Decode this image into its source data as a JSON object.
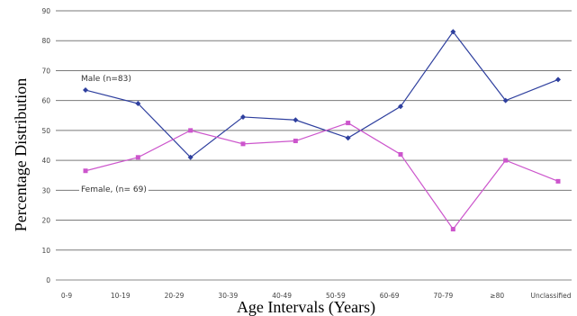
{
  "chart_data": {
    "type": "line",
    "title": "",
    "xlabel": "Age Intervals (Years)",
    "ylabel": "Percentage Distribution",
    "ylim": [
      0,
      90
    ],
    "yticks": [
      "0",
      "10",
      "20",
      "30",
      "40",
      "50",
      "60",
      "70",
      "80",
      "90"
    ],
    "categories": [
      "0-9",
      "10-19",
      "20-29",
      "30-39",
      "40-49",
      "50-59",
      "60-69",
      "70-79",
      "≥80",
      "Unclassified"
    ],
    "series": [
      {
        "name": "Male (n=83)",
        "color": "#2e3f9e",
        "marker": "diamond",
        "values": [
          63.5,
          59,
          41,
          54.5,
          53.5,
          47.5,
          58,
          83,
          60,
          67
        ]
      },
      {
        "name": "Female, (n= 69)",
        "color": "#cc55cc",
        "marker": "square",
        "values": [
          36.5,
          41,
          50,
          45.5,
          46.5,
          52.5,
          42,
          17,
          40,
          33
        ]
      }
    ],
    "grid": true,
    "legend": "inline labels"
  }
}
